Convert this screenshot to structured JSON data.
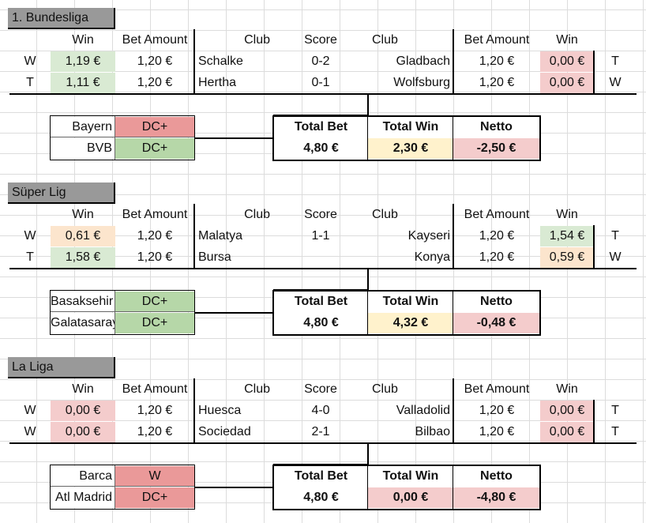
{
  "headers": {
    "win": "Win",
    "bet_amount": "Bet Amount",
    "club": "Club",
    "score": "Score",
    "total_bet": "Total Bet",
    "total_win": "Total Win",
    "netto": "Netto"
  },
  "colors": {
    "light_green": "#d9ead3",
    "light_red": "#f4cccc",
    "light_orange": "#fce5cd",
    "light_yellow": "#fff2cc",
    "green": "#b6d7a8",
    "red": "#ea9999",
    "title_gray": "#999999"
  },
  "sections": [
    {
      "title": "1. Bundesliga",
      "matches": [
        {
          "left_tag": "W",
          "left_win": "1,19 €",
          "left_win_color": "green",
          "left_bet": "1,20 €",
          "home": "Schalke",
          "score": "0-2",
          "away": "Gladbach",
          "right_bet": "1,20 €",
          "right_win": "0,00 €",
          "right_win_color": "red",
          "right_tag": "T"
        },
        {
          "left_tag": "T",
          "left_win": "1,11 €",
          "left_win_color": "green",
          "left_bet": "1,20 €",
          "home": "Hertha",
          "score": "0-1",
          "away": "Wolfsburg",
          "right_bet": "1,20 €",
          "right_win": "0,00 €",
          "right_win_color": "red",
          "right_tag": "W"
        }
      ],
      "picks": [
        {
          "team": "Bayern",
          "bet": "DC+",
          "color": "sred"
        },
        {
          "team": "BVB",
          "bet": "DC+",
          "color": "sgreen"
        }
      ],
      "totals": {
        "total_bet": "4,80 €",
        "total_win": "2,30 €",
        "total_win_color": "yellow",
        "netto": "-2,50 €"
      }
    },
    {
      "title": "Süper Lig",
      "matches": [
        {
          "left_tag": "W",
          "left_win": "0,61 €",
          "left_win_color": "peach",
          "left_bet": "1,20 €",
          "home": "Malatya",
          "score": "1-1",
          "away": "Kayseri",
          "right_bet": "1,20 €",
          "right_win": "1,54 €",
          "right_win_color": "green",
          "right_tag": "T"
        },
        {
          "left_tag": "T",
          "left_win": "1,58 €",
          "left_win_color": "green",
          "left_bet": "1,20 €",
          "home": "Bursa",
          "score": "",
          "away": "Konya",
          "right_bet": "1,20 €",
          "right_win": "0,59 €",
          "right_win_color": "peach",
          "right_tag": "W"
        }
      ],
      "picks": [
        {
          "team": "Basaksehir",
          "bet": "DC+",
          "color": "sgreen"
        },
        {
          "team": "Galatasaray",
          "bet": "DC+",
          "color": "sgreen"
        }
      ],
      "totals": {
        "total_bet": "4,80 €",
        "total_win": "4,32 €",
        "total_win_color": "yellow",
        "netto": "-0,48 €"
      }
    },
    {
      "title": "La Liga",
      "matches": [
        {
          "left_tag": "W",
          "left_win": "0,00 €",
          "left_win_color": "red",
          "left_bet": "1,20 €",
          "home": "Huesca",
          "score": "4-0",
          "away": "Valladolid",
          "right_bet": "1,20 €",
          "right_win": "0,00 €",
          "right_win_color": "red",
          "right_tag": "T"
        },
        {
          "left_tag": "W",
          "left_win": "0,00 €",
          "left_win_color": "red",
          "left_bet": "1,20 €",
          "home": "Sociedad",
          "score": "2-1",
          "away": "Bilbao",
          "right_bet": "1,20 €",
          "right_win": "0,00 €",
          "right_win_color": "red",
          "right_tag": "T"
        }
      ],
      "picks": [
        {
          "team": "Barca",
          "bet": "W",
          "color": "sred"
        },
        {
          "team": "Atl Madrid",
          "bet": "DC+",
          "color": "sred"
        }
      ],
      "totals": {
        "total_bet": "4,80 €",
        "total_win": "0,00 €",
        "total_win_color": "red",
        "netto": "-4,80 €"
      }
    }
  ]
}
